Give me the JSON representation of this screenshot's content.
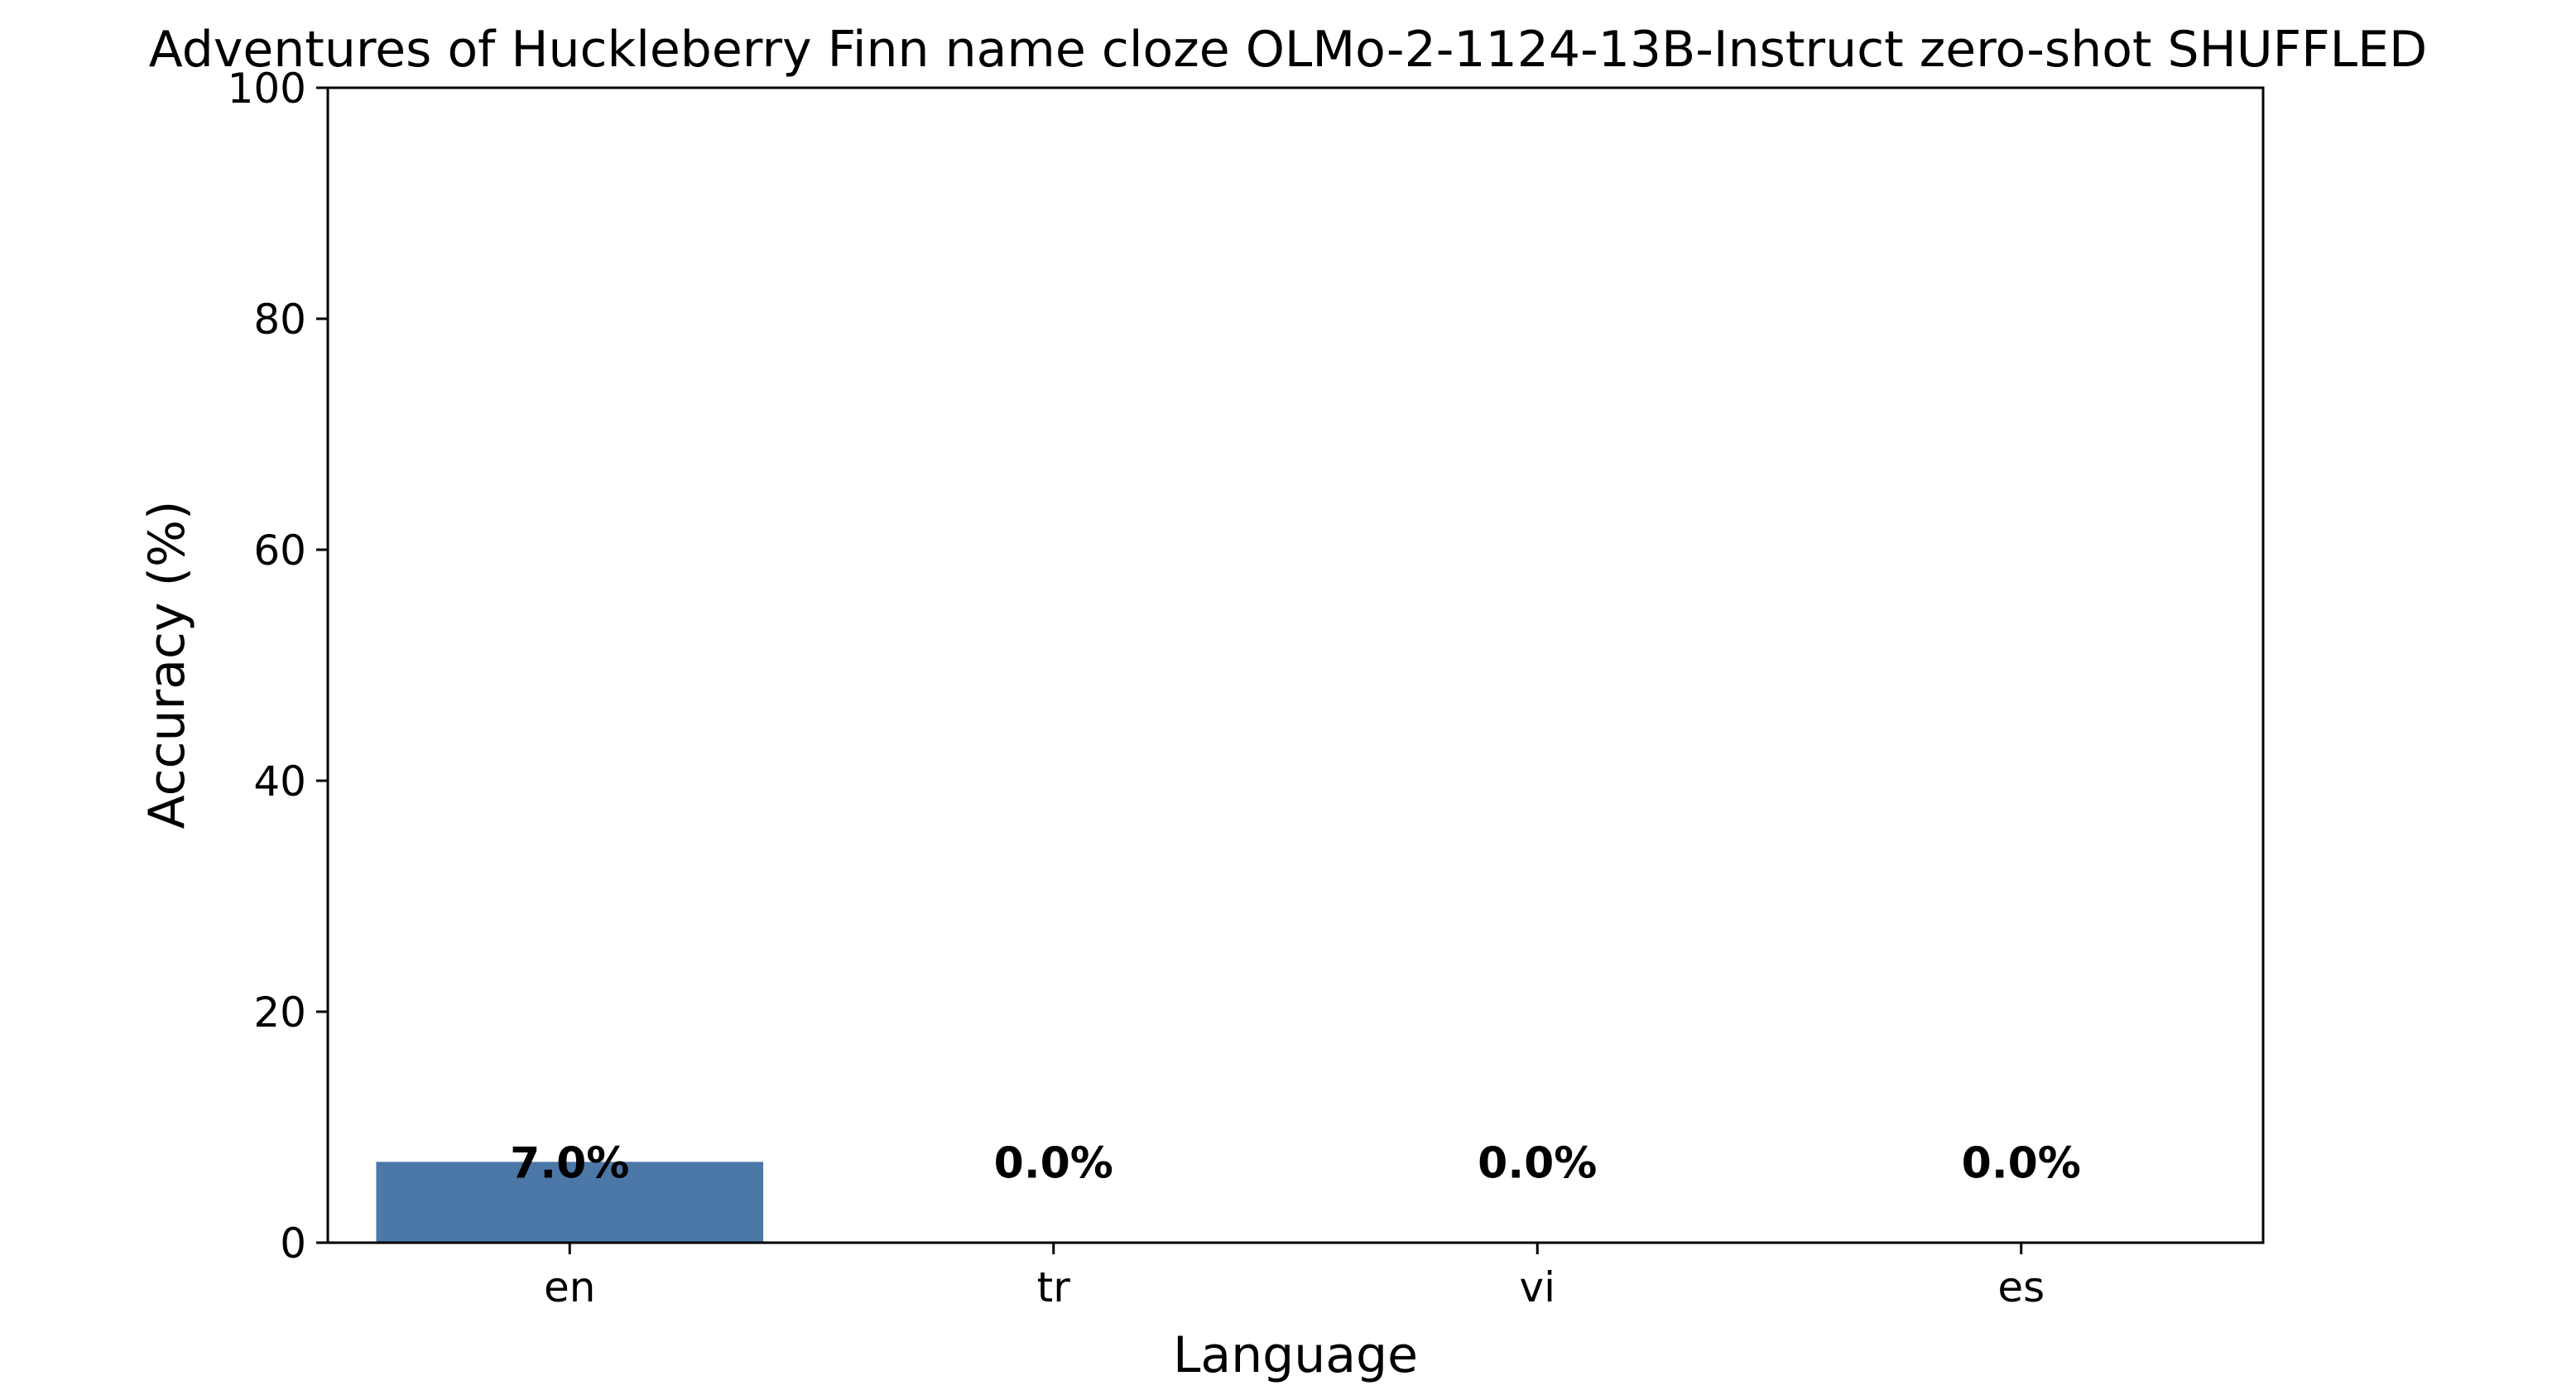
{
  "chart_data": {
    "type": "bar",
    "title": "Adventures of Huckleberry Finn name cloze OLMo-2-1124-13B-Instruct zero-shot SHUFFLED",
    "xlabel": "Language",
    "ylabel": "Accuracy (%)",
    "categories": [
      "en",
      "tr",
      "vi",
      "es"
    ],
    "values": [
      7.0,
      0.0,
      0.0,
      0.0
    ],
    "data_labels": [
      "7.0%",
      "0.0%",
      "0.0%",
      "0.0%"
    ],
    "ylim": [
      0,
      100
    ],
    "yticks": [
      0,
      20,
      40,
      60,
      80,
      100
    ],
    "ytick_labels": [
      "0",
      "20",
      "40",
      "60",
      "80",
      "100"
    ],
    "grid": false,
    "legend": "none",
    "colors": {
      "bar": "#4c78a8",
      "axis": "#000000",
      "text": "#000000",
      "background": "#ffffff"
    }
  }
}
